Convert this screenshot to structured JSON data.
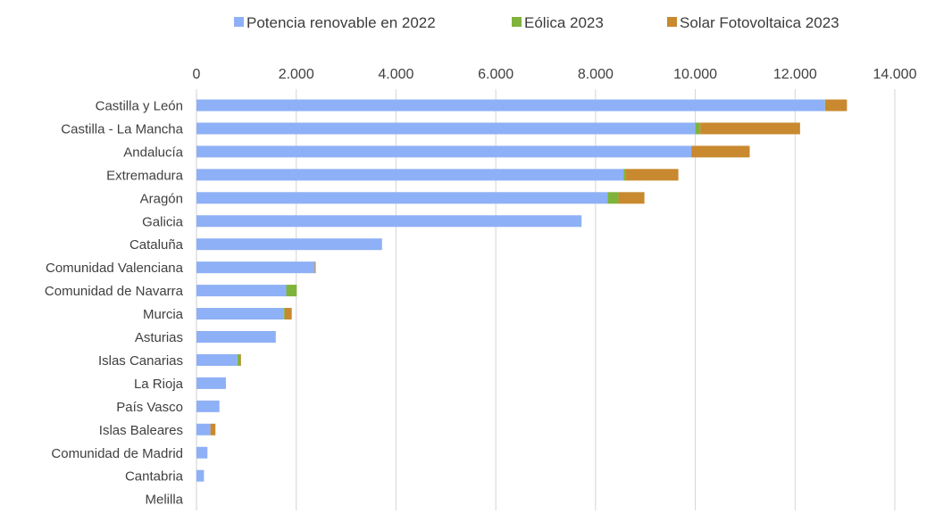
{
  "chart_data": {
    "type": "bar",
    "orientation": "horizontal",
    "stacked": true,
    "legend_position": "top",
    "grid": true,
    "xlim": [
      0,
      14000
    ],
    "ticks": [
      0,
      2000,
      4000,
      6000,
      8000,
      10000,
      12000,
      14000
    ],
    "tick_labels": [
      "0",
      "2.000",
      "4.000",
      "6.000",
      "8.000",
      "10.000",
      "12.000",
      "14.000"
    ],
    "categories": [
      "Castilla y León",
      "Castilla - La Mancha",
      "Andalucía",
      "Extremadura",
      "Aragón",
      "Galicia",
      "Cataluña",
      "Comunidad Valenciana",
      "Comunidad de Navarra",
      "Murcia",
      "Asturias",
      "Islas Canarias",
      "La Rioja",
      "País Vasco",
      "Islas Baleares",
      "Comunidad de Madrid",
      "Cantabria",
      "Melilla"
    ],
    "series": [
      {
        "name": "Potencia renovable en 2022",
        "color": "#8eb0f6",
        "values": [
          12600,
          10000,
          9920,
          8560,
          8240,
          7720,
          3720,
          2370,
          1800,
          1750,
          1590,
          820,
          590,
          460,
          280,
          220,
          150,
          0
        ]
      },
      {
        "name": "Eólica 2023",
        "color": "#7fb33c",
        "values": [
          10,
          100,
          0,
          40,
          220,
          0,
          0,
          0,
          210,
          20,
          0,
          60,
          0,
          0,
          0,
          0,
          0,
          0
        ]
      },
      {
        "name": "Solar Fotovoltaica 2023",
        "color": "#c8892f",
        "values": [
          430,
          2000,
          1170,
          1060,
          520,
          0,
          0,
          20,
          0,
          140,
          0,
          10,
          0,
          0,
          100,
          0,
          0,
          0
        ]
      }
    ]
  }
}
